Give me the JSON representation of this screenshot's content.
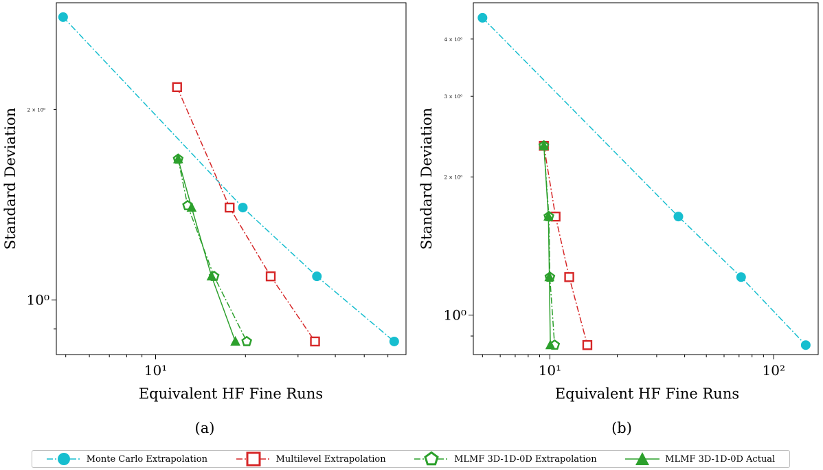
{
  "panels": [
    {
      "caption": "(a)",
      "xlabel": "Equivalent HF Fine Runs",
      "ylabel": "Standard Deviation",
      "x_ticks": [
        {
          "value": 10,
          "label": "10¹"
        }
      ],
      "y_ticks": [
        {
          "value": 1,
          "label": "10⁰"
        },
        {
          "value": 2,
          "label": "2 × 10⁰"
        }
      ]
    },
    {
      "caption": "(b)",
      "xlabel": "Equivalent HF Fine Runs",
      "ylabel": "Standard Deviation",
      "x_ticks": [
        {
          "value": 10,
          "label": "10¹"
        },
        {
          "value": 100,
          "label": "10²"
        }
      ],
      "y_ticks": [
        {
          "value": 1,
          "label": "10⁰"
        },
        {
          "value": 2,
          "label": "2 × 10⁰"
        },
        {
          "value": 3,
          "label": "3 × 10⁰"
        },
        {
          "value": 4,
          "label": "4 × 10⁰"
        }
      ]
    }
  ],
  "colors": {
    "monte_carlo": "#17becf",
    "multilevel": "#d62728",
    "mlmf": "#2ca02c"
  },
  "legend": [
    {
      "key": "monte_carlo",
      "label": "Monte Carlo Extrapolation",
      "marker": "circle",
      "dash": "dashdot"
    },
    {
      "key": "multilevel",
      "label": "Multilevel Extrapolation",
      "marker": "square",
      "dash": "dashdot"
    },
    {
      "key": "mlmf_extrap",
      "label": "MLMF 3D-1D-0D Extrapolation",
      "marker": "pentagon",
      "dash": "dashdot"
    },
    {
      "key": "mlmf_actual",
      "label": "MLMF 3D-1D-0D Actual",
      "marker": "triangle",
      "dash": "solid"
    }
  ],
  "chart_data": [
    {
      "type": "line",
      "xscale": "log",
      "yscale": "log",
      "xlim": [
        4.65,
        69
      ],
      "ylim": [
        0.82,
        2.95
      ],
      "xlabel": "Equivalent HF Fine Runs",
      "ylabel": "Standard Deviation",
      "grid": false,
      "series": [
        {
          "name": "Monte Carlo Extrapolation",
          "color": "monte_carlo",
          "marker": "circle",
          "dash": "dashdot",
          "x": [
            4.9,
            19.6,
            34.7,
            63
          ],
          "y": [
            2.8,
            1.4,
            1.09,
            0.86
          ]
        },
        {
          "name": "Multilevel Extrapolation",
          "color": "multilevel",
          "marker": "square",
          "dash": "dashdot",
          "x": [
            11.8,
            17.7,
            24.3,
            34.2
          ],
          "y": [
            2.17,
            1.4,
            1.09,
            0.86
          ]
        },
        {
          "name": "MLMF 3D-1D-0D Extrapolation",
          "color": "mlmf",
          "marker": "pentagon",
          "dash": "dashdot",
          "x": [
            11.9,
            12.8,
            15.7,
            20.2
          ],
          "y": [
            1.67,
            1.41,
            1.09,
            0.86
          ]
        },
        {
          "name": "MLMF 3D-1D-0D Actual",
          "color": "mlmf",
          "marker": "triangle",
          "dash": "solid",
          "x": [
            11.9,
            13.2,
            15.4,
            18.5
          ],
          "y": [
            1.67,
            1.4,
            1.09,
            0.86
          ]
        }
      ]
    },
    {
      "type": "line",
      "xscale": "log",
      "yscale": "log",
      "xlim": [
        4.55,
        158
      ],
      "ylim": [
        0.82,
        4.8
      ],
      "xlabel": "Equivalent HF Fine Runs",
      "ylabel": "Standard Deviation",
      "grid": false,
      "series": [
        {
          "name": "Monte Carlo Extrapolation",
          "color": "monte_carlo",
          "marker": "circle",
          "dash": "dashdot",
          "x": [
            5,
            37.5,
            71.5,
            139
          ],
          "y": [
            4.45,
            1.64,
            1.21,
            0.86
          ]
        },
        {
          "name": "Multilevel Extrapolation",
          "color": "multilevel",
          "marker": "square",
          "dash": "dashdot",
          "x": [
            9.4,
            10.6,
            12.2,
            14.7
          ],
          "y": [
            2.34,
            1.64,
            1.21,
            0.86
          ]
        },
        {
          "name": "MLMF 3D-1D-0D Extrapolation",
          "color": "mlmf",
          "marker": "pentagon",
          "dash": "dashdot",
          "x": [
            9.4,
            9.9,
            10.0,
            10.5
          ],
          "y": [
            2.34,
            1.64,
            1.21,
            0.86
          ]
        },
        {
          "name": "MLMF 3D-1D-0D Actual",
          "color": "mlmf",
          "marker": "triangle",
          "dash": "solid",
          "x": [
            9.4,
            9.85,
            9.95,
            10.05
          ],
          "y": [
            2.34,
            1.64,
            1.21,
            0.86
          ]
        }
      ]
    }
  ]
}
